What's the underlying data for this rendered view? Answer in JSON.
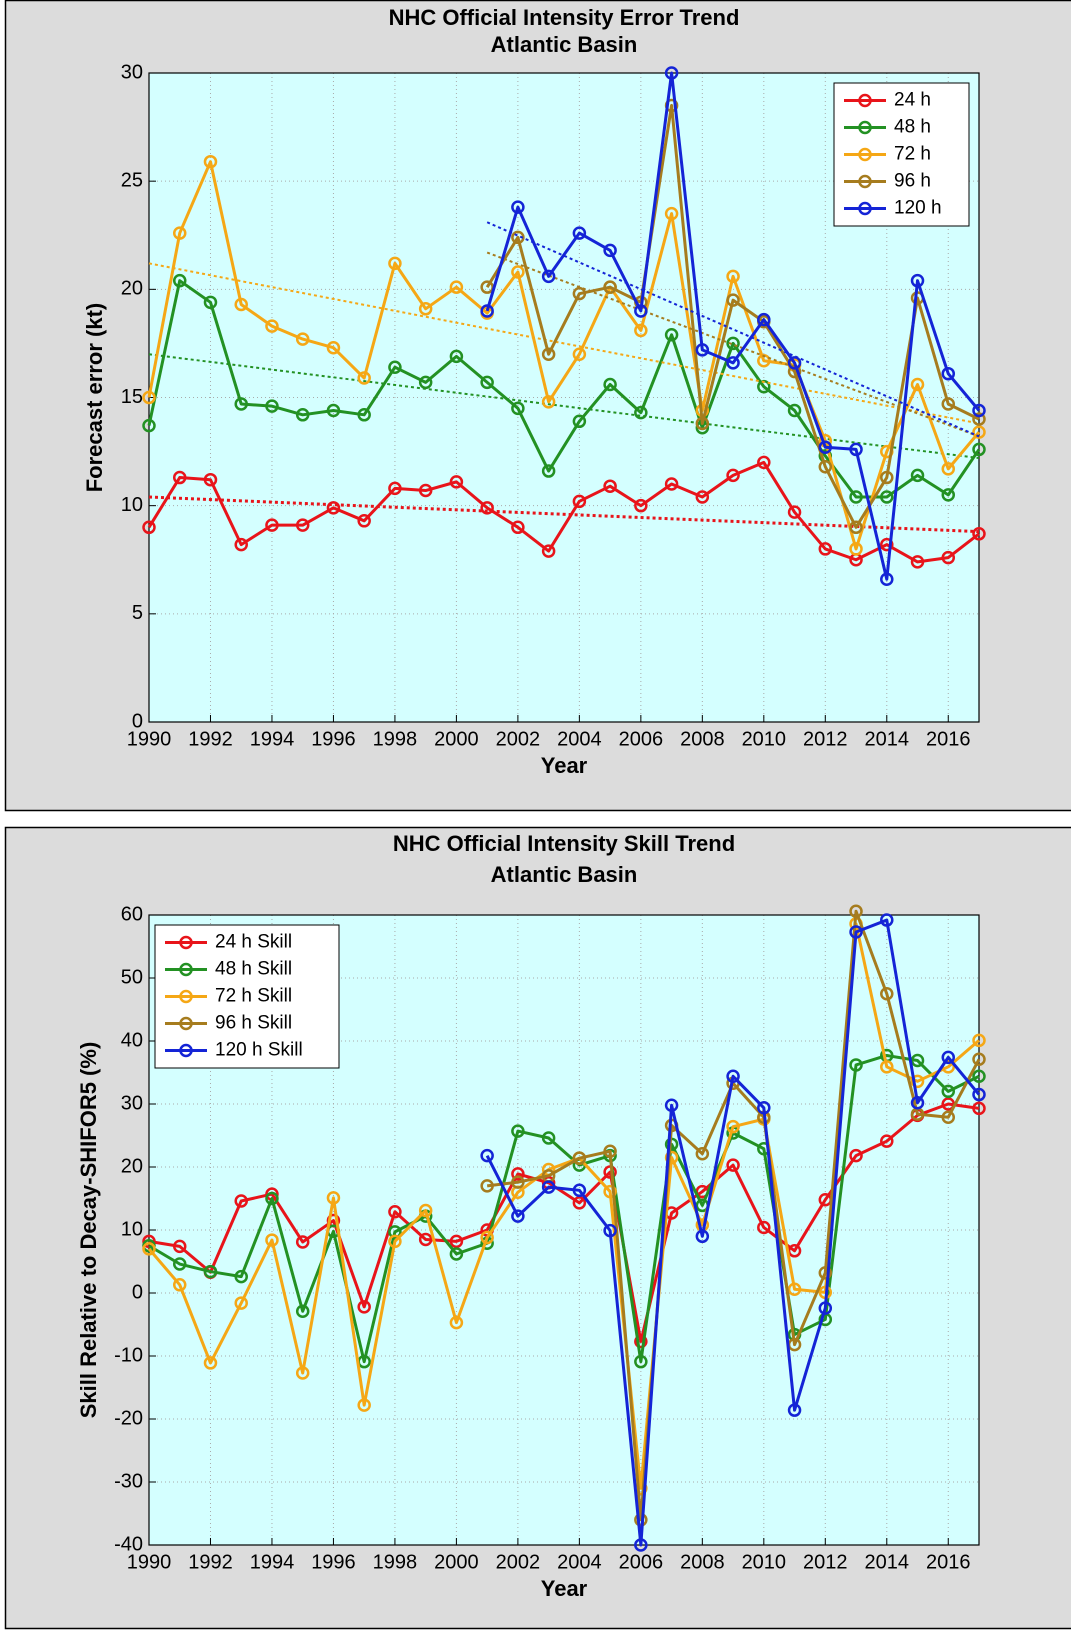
{
  "chart_data": [
    {
      "type": "line",
      "title": "NHC Official Intensity Error Trend",
      "subtitle": "Atlantic Basin",
      "x_label": "Year",
      "y_label": "Forecast error (kt)",
      "x": [
        1990,
        1991,
        1992,
        1993,
        1994,
        1995,
        1996,
        1997,
        1998,
        1999,
        2000,
        2001,
        2002,
        2003,
        2004,
        2005,
        2006,
        2007,
        2008,
        2009,
        2010,
        2011,
        2012,
        2013,
        2014,
        2015,
        2016,
        2017
      ],
      "xlim": [
        1990,
        2017
      ],
      "xticks": [
        1990,
        1992,
        1994,
        1996,
        1998,
        2000,
        2002,
        2004,
        2006,
        2008,
        2010,
        2012,
        2014,
        2016
      ],
      "ylim": [
        0,
        30
      ],
      "yticks": [
        0,
        5,
        10,
        15,
        20,
        25,
        30
      ],
      "grid": true,
      "legend": "upper right",
      "series": [
        {
          "name": "24 h",
          "color": "#e8141a",
          "values": [
            9.0,
            11.3,
            11.2,
            8.2,
            9.1,
            9.1,
            9.9,
            9.3,
            10.8,
            10.7,
            11.1,
            9.9,
            9.0,
            7.9,
            10.2,
            10.9,
            10.0,
            11.0,
            10.4,
            11.4,
            12.0,
            9.7,
            8.0,
            7.5,
            8.2,
            7.4,
            7.6,
            8.7
          ],
          "trend": {
            "x": [
              1990,
              2017
            ],
            "values": [
              10.4,
              8.8
            ]
          }
        },
        {
          "name": "48 h",
          "color": "#239123",
          "values": [
            13.7,
            20.4,
            19.4,
            14.7,
            14.6,
            14.2,
            14.4,
            14.2,
            16.4,
            15.7,
            16.9,
            15.7,
            14.5,
            11.6,
            13.9,
            15.6,
            14.3,
            17.9,
            13.6,
            17.5,
            15.5,
            14.4,
            12.3,
            10.4,
            10.4,
            11.4,
            10.5,
            12.6
          ],
          "trend": {
            "x": [
              1990,
              2017
            ],
            "values": [
              17.0,
              12.2
            ]
          }
        },
        {
          "name": "72 h",
          "color": "#f5a715",
          "values": [
            15.0,
            22.6,
            25.9,
            19.3,
            18.3,
            17.7,
            17.3,
            15.9,
            21.2,
            19.1,
            20.1,
            18.9,
            20.8,
            14.8,
            17.0,
            20.1,
            18.1,
            23.5,
            14.4,
            20.6,
            16.7,
            16.5,
            13.0,
            8.0,
            12.5,
            15.6,
            11.7,
            13.4
          ],
          "trend": {
            "x": [
              1990,
              2017
            ],
            "values": [
              21.2,
              13.8
            ]
          }
        },
        {
          "name": "96 h",
          "color": "#a67c1e",
          "values": [
            null,
            null,
            null,
            null,
            null,
            null,
            null,
            null,
            null,
            null,
            null,
            20.1,
            22.4,
            17.0,
            19.8,
            20.1,
            19.4,
            28.5,
            13.8,
            19.5,
            18.5,
            16.2,
            11.8,
            9.0,
            11.3,
            19.6,
            14.7,
            14.0
          ],
          "trend": {
            "x": [
              2001,
              2017
            ],
            "values": [
              21.7,
              13.2
            ]
          }
        },
        {
          "name": "120 h",
          "color": "#1424d6",
          "values": [
            null,
            null,
            null,
            null,
            null,
            null,
            null,
            null,
            null,
            null,
            null,
            19.0,
            23.8,
            20.6,
            22.6,
            21.8,
            19.0,
            30.0,
            17.2,
            16.6,
            18.6,
            16.6,
            12.7,
            12.6,
            6.6,
            20.4,
            16.1,
            14.4
          ],
          "trend": {
            "x": [
              2001,
              2017
            ],
            "values": [
              23.1,
              13.2
            ]
          }
        }
      ]
    },
    {
      "type": "line",
      "title": "NHC Official Intensity Skill Trend",
      "subtitle": "Atlantic Basin",
      "x_label": "Year",
      "y_label": "Skill Relative to Decay-SHIFOR5 (%)",
      "x": [
        1990,
        1991,
        1992,
        1993,
        1994,
        1995,
        1996,
        1997,
        1998,
        1999,
        2000,
        2001,
        2002,
        2003,
        2004,
        2005,
        2006,
        2007,
        2008,
        2009,
        2010,
        2011,
        2012,
        2013,
        2014,
        2015,
        2016,
        2017
      ],
      "xlim": [
        1990,
        2017
      ],
      "xticks": [
        1990,
        1992,
        1994,
        1996,
        1998,
        2000,
        2002,
        2004,
        2006,
        2008,
        2010,
        2012,
        2014,
        2016
      ],
      "ylim": [
        -40,
        60
      ],
      "yticks": [
        -40,
        -30,
        -20,
        -10,
        0,
        10,
        20,
        30,
        40,
        50,
        60
      ],
      "grid": true,
      "legend": "upper left",
      "series": [
        {
          "name": "24 h Skill",
          "color": "#e8141a",
          "values": [
            8.2,
            7.4,
            3.3,
            14.6,
            15.7,
            8.1,
            11.5,
            -2.2,
            12.9,
            8.5,
            8.2,
            10.0,
            18.9,
            17.5,
            14.3,
            19.2,
            -7.7,
            12.7,
            16.1,
            20.3,
            10.4,
            6.7,
            14.8,
            21.8,
            24.1,
            28.2,
            30.0,
            29.3
          ]
        },
        {
          "name": "48 h Skill",
          "color": "#239123",
          "values": [
            7.5,
            4.6,
            3.4,
            2.6,
            15.0,
            -2.9,
            9.8,
            -10.9,
            9.7,
            12.2,
            6.2,
            7.9,
            25.7,
            24.6,
            20.3,
            21.8,
            -10.9,
            23.6,
            13.9,
            25.4,
            22.9,
            -6.6,
            -4.2,
            36.2,
            37.7,
            36.9,
            32.0,
            34.4
          ]
        },
        {
          "name": "72 h Skill",
          "color": "#f5a715",
          "values": [
            7.0,
            1.3,
            -11.1,
            -1.6,
            8.4,
            -12.7,
            15.1,
            -17.8,
            8.2,
            13.1,
            -4.7,
            8.8,
            16.0,
            19.6,
            21.4,
            16.1,
            -31.0,
            21.5,
            10.8,
            26.4,
            27.6,
            0.6,
            0.1,
            58.6,
            35.9,
            33.6,
            35.9,
            40.1
          ]
        },
        {
          "name": "96 h Skill",
          "color": "#a67c1e",
          "values": [
            null,
            null,
            null,
            null,
            null,
            null,
            null,
            null,
            null,
            null,
            null,
            17.0,
            17.6,
            18.6,
            21.4,
            22.5,
            -36.0,
            26.6,
            22.1,
            33.3,
            27.9,
            -8.2,
            3.2,
            60.6,
            47.5,
            28.4,
            27.9,
            37.1
          ]
        },
        {
          "name": "120 h Skill",
          "color": "#1424d6",
          "values": [
            null,
            null,
            null,
            null,
            null,
            null,
            null,
            null,
            null,
            null,
            null,
            21.8,
            12.2,
            16.8,
            16.3,
            9.9,
            -40.0,
            29.8,
            9.0,
            34.4,
            29.4,
            -18.6,
            -2.4,
            57.3,
            59.2,
            30.2,
            37.4,
            31.5
          ]
        }
      ]
    }
  ]
}
